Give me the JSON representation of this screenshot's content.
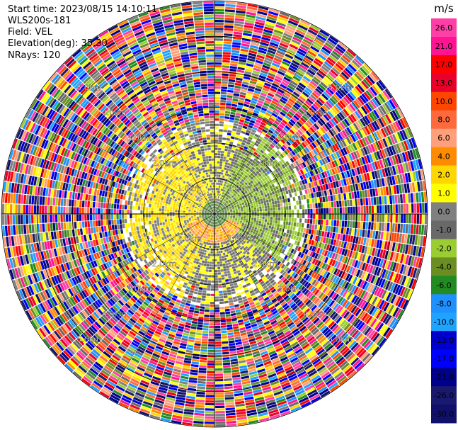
{
  "header": {
    "start_time": "Start time: 2023/08/15 14:10:11",
    "instrument": "WLS200s-181",
    "field": "Field: VEL",
    "elevation": "Elevation(deg): 35.30",
    "nrays": "NRays: 120"
  },
  "chart_data": {
    "type": "heatmap",
    "projection": "polar-ppi",
    "field": "VEL",
    "nrays": 120,
    "range_rings_km": [
      1.0,
      2.0,
      3.0,
      4.0,
      5.0
    ],
    "ring_labels": [
      "1.0km",
      "2.0km",
      "3.0km",
      "4.0km",
      "5.0km"
    ],
    "ring_label_azimuths_deg": [
      45,
      135,
      225,
      315
    ],
    "max_range_km": 6.0,
    "colorbar": {
      "unit": "m/s",
      "ticks": [
        "26.0",
        "21.0",
        "17.0",
        "13.0",
        "10.0",
        "8.0",
        "6.0",
        "4.0",
        "2.0",
        "1.0",
        "0.0",
        "-1.0",
        "-2.0",
        "-4.0",
        "-6.0",
        "-8.0",
        "-10.0",
        "-13.0",
        "-17.0",
        "-21.0",
        "-26.0",
        "-30.0"
      ],
      "colors": [
        "#ff3fa6",
        "#ff1493",
        "#ff0000",
        "#e8002a",
        "#ff4500",
        "#ff6a3d",
        "#ffa07a",
        "#ff8c00",
        "#ffd700",
        "#ffff00",
        "#808080",
        "#696969",
        "#9acd32",
        "#6b8e23",
        "#228b22",
        "#1e90ff",
        "#1fa3ff",
        "#0000cd",
        "#0000ff",
        "#00008b",
        "#191970",
        "#10106a"
      ]
    },
    "near_field_pattern": [
      {
        "r_km_min": 0.0,
        "r_km_max": 0.35,
        "az_deg_min": 0,
        "az_deg_max": 360,
        "values": [
          -6.0,
          -4.0,
          0.0
        ]
      },
      {
        "r_km_min": 0.2,
        "r_km_max": 0.8,
        "az_deg_min": 110,
        "az_deg_max": 250,
        "values": [
          6.0,
          4.0,
          2.0
        ]
      },
      {
        "r_km_min": 0.3,
        "r_km_max": 2.5,
        "az_deg_min": 200,
        "az_deg_max": 340,
        "values": [
          2.0,
          2.0,
          1.0,
          0.0
        ]
      },
      {
        "r_km_min": 0.3,
        "r_km_max": 2.5,
        "az_deg_min": 20,
        "az_deg_max": 130,
        "values": [
          -2.0,
          -2.0,
          -1.0,
          -4.0
        ]
      },
      {
        "r_km_min": 0.3,
        "r_km_max": 2.5,
        "az_deg_min": 340,
        "az_deg_max": 380,
        "values": [
          0.0,
          -1.0,
          1.0
        ]
      },
      {
        "r_km_min": 0.3,
        "r_km_max": 2.5,
        "az_deg_min": 130,
        "az_deg_max": 200,
        "values": [
          0.0,
          1.0,
          -1.0
        ]
      }
    ],
    "far_field": "noise (random velocities across full color scale)",
    "grid": true
  }
}
